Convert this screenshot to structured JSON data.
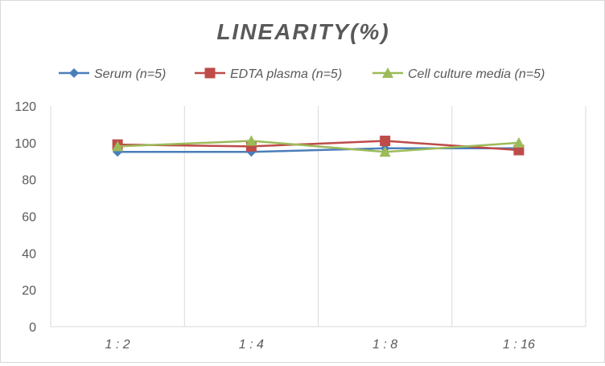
{
  "chart_data": {
    "type": "line",
    "title": "LINEARITY(%)",
    "xlabel": "",
    "ylabel": "",
    "categories": [
      "1:2",
      "1:4",
      "1:8",
      "1:16"
    ],
    "ylim": [
      0,
      120
    ],
    "yticks": [
      0,
      20,
      40,
      60,
      80,
      100,
      120
    ],
    "grid": "vertical",
    "legend_position": "top",
    "series": [
      {
        "name": "Serum (n=5)",
        "values": [
          95,
          95,
          97,
          97
        ],
        "color": "#4a7ebb",
        "marker": "diamond"
      },
      {
        "name": "EDTA plasma (n=5)",
        "values": [
          99,
          98,
          101,
          96
        ],
        "color": "#be4b48",
        "marker": "square"
      },
      {
        "name": "Cell culture media (n=5)",
        "values": [
          98,
          101,
          95,
          100
        ],
        "color": "#9bbb59",
        "marker": "triangle"
      }
    ]
  }
}
